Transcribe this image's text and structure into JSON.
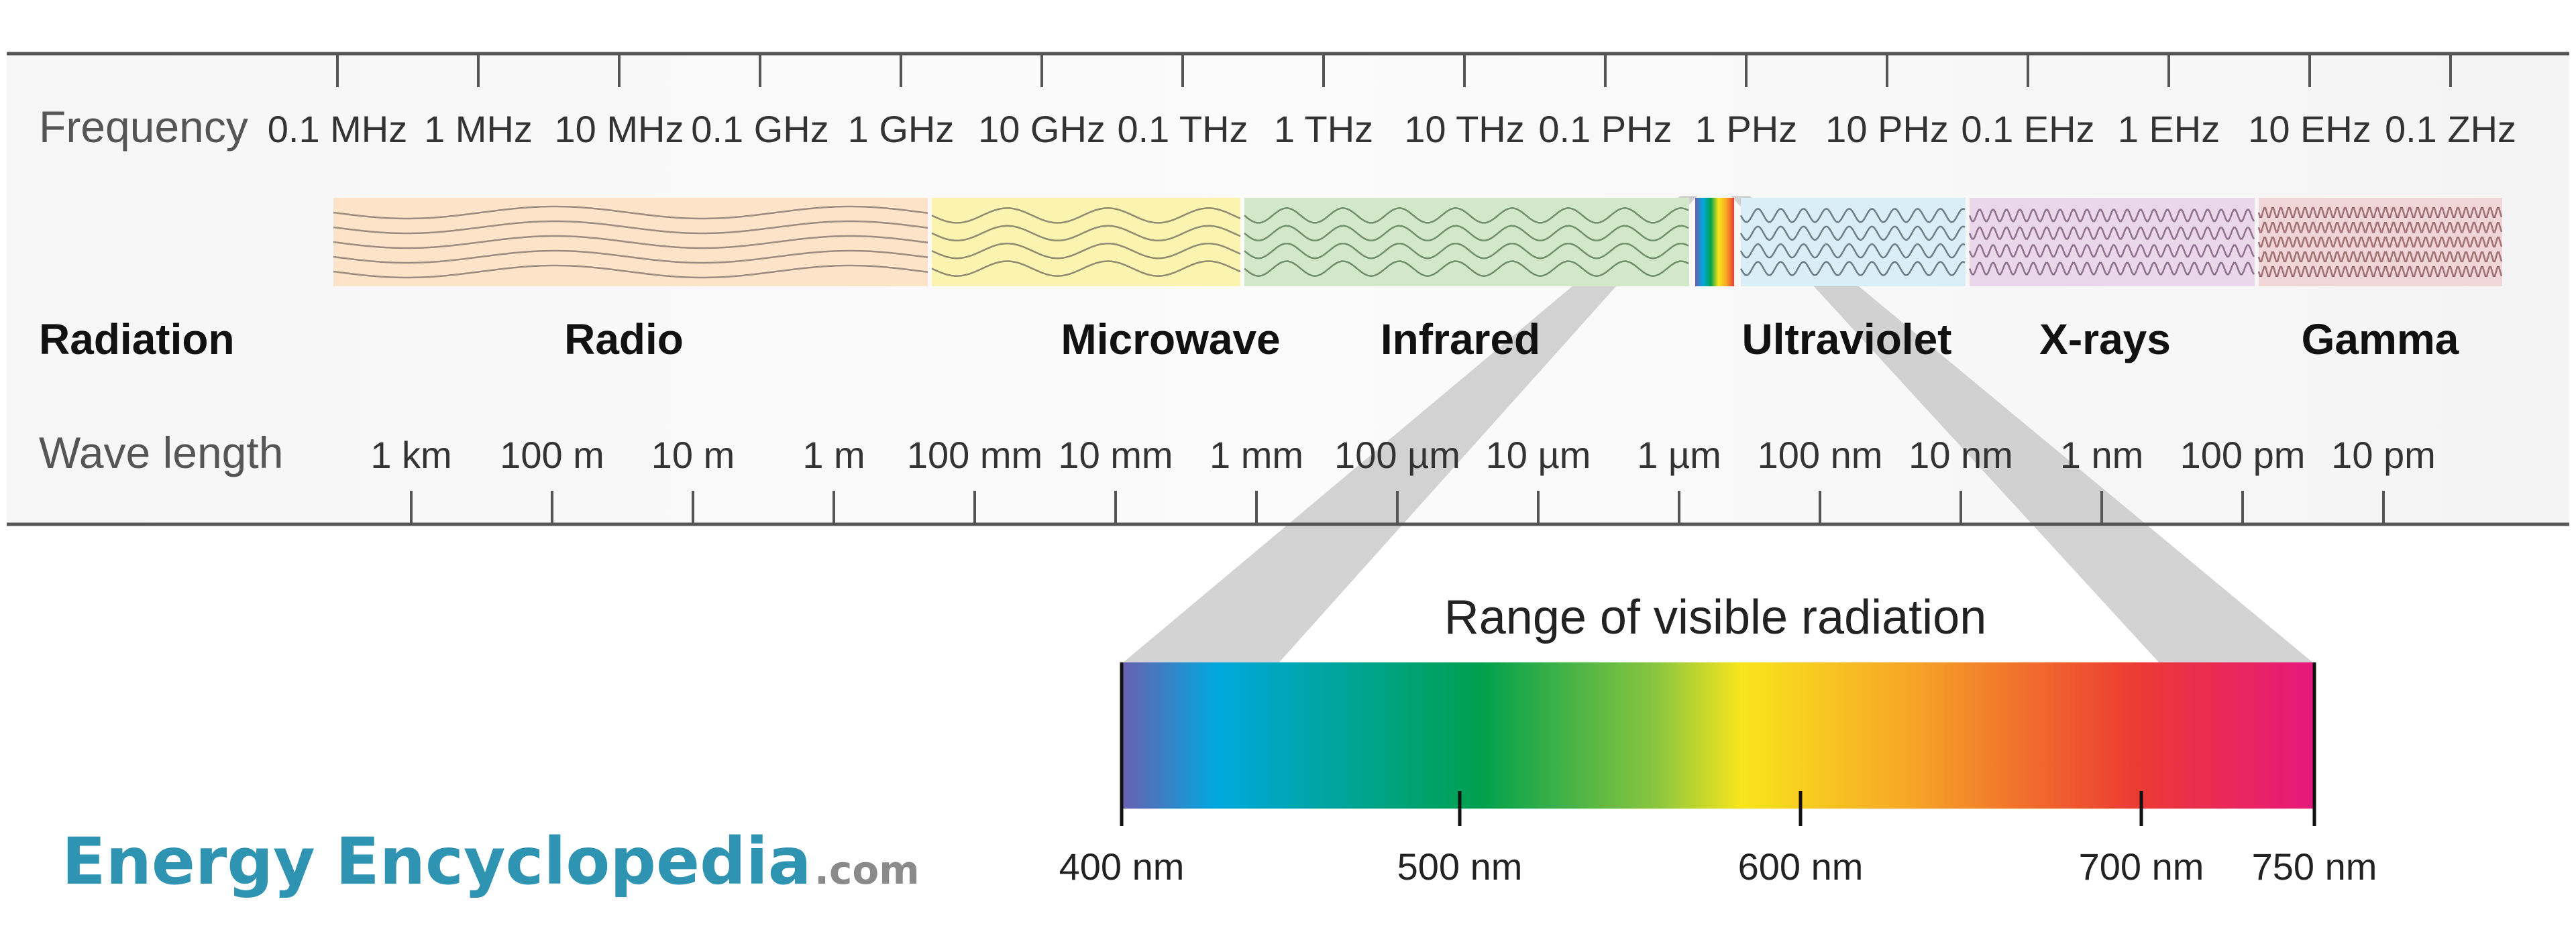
{
  "rows": {
    "frequency_label": "Frequency",
    "radiation_label": "Radiation",
    "wavelength_label": "Wave length"
  },
  "frequency_ticks": [
    "0.1 MHz",
    "1 MHz",
    "10 MHz",
    "0.1 GHz",
    "1 GHz",
    "10 GHz",
    "0.1 THz",
    "1 THz",
    "10 THz",
    "0.1 PHz",
    "1 PHz",
    "10 PHz",
    "0.1 EHz",
    "1 EHz",
    "10 EHz",
    "0.1 ZHz"
  ],
  "wavelength_ticks": [
    "1 km",
    "100 m",
    "10 m",
    "1 m",
    "100 mm",
    "10 mm",
    "1 mm",
    "100 µm",
    "10 µm",
    "1 µm",
    "100 nm",
    "10 nm",
    "1 nm",
    "100 pm",
    "10 pm"
  ],
  "bands": [
    {
      "name": "Radio",
      "color": "#fde3c8"
    },
    {
      "name": "Microwave",
      "color": "#fbf4b0"
    },
    {
      "name": "Infrared",
      "color": "#d3e8c9"
    },
    {
      "name": "Ultraviolet",
      "color": "#d9eef6"
    },
    {
      "name": "X-rays",
      "color": "#ead7ea"
    },
    {
      "name": "Gamma",
      "color": "#f1d6d8"
    }
  ],
  "visible": {
    "title": "Range of visible radiation",
    "ticks": [
      "400 nm",
      "500 nm",
      "600 nm",
      "700 nm",
      "750 nm"
    ],
    "gradient_colors": [
      "#6a5fb0",
      "#00a8de",
      "#00a04e",
      "#8cc63f",
      "#f9e51c",
      "#f6a626",
      "#ec3a33",
      "#e6187d"
    ]
  },
  "logo": {
    "word1": "Energy",
    "word2": "Encyclopedia",
    "suffix": ".com"
  }
}
